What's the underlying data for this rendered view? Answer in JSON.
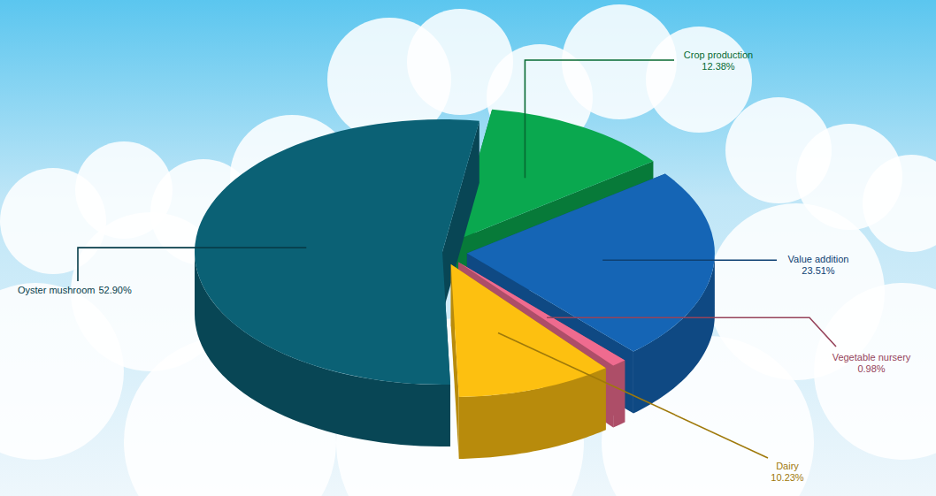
{
  "chart_data": {
    "type": "pie",
    "categories": [
      "Crop production",
      "Value addition",
      "Vegetable nursery",
      "Dairy",
      "Oyster mushroom"
    ],
    "values": [
      12.38,
      23.51,
      0.98,
      10.23,
      52.9
    ],
    "value_labels": [
      "12.38%",
      "23.51%",
      "0.98%",
      "10.23%",
      "52.90%"
    ],
    "colors": [
      "#0aa84f",
      "#1565b5",
      "#ef6b8f",
      "#fdc010",
      "#0b6175"
    ],
    "data_labels": true
  }
}
